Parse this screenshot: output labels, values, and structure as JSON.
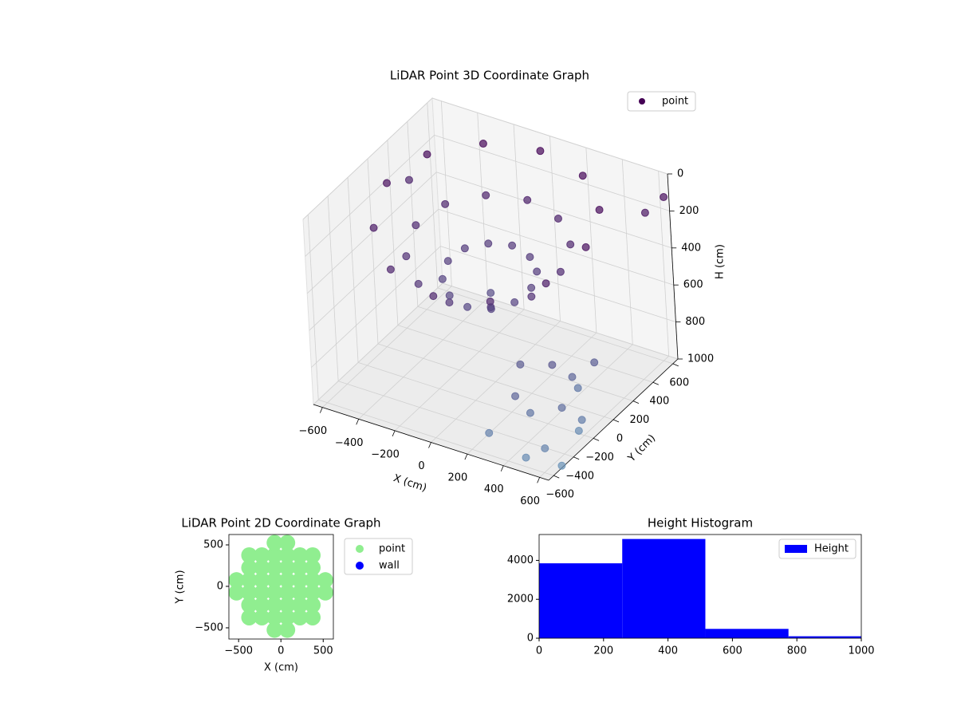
{
  "chart_data": [
    {
      "type": "scatter3d",
      "title": "LiDAR Point 3D Coordinate Graph",
      "xlabel": "X (cm)",
      "ylabel": "Y (cm)",
      "zlabel": "H (cm)",
      "xlim": [
        -650,
        650
      ],
      "ylim": [
        -650,
        650
      ],
      "zlim": [
        1000,
        0
      ],
      "xticks": [
        {
          "value": -600,
          "label": "−600"
        },
        {
          "value": -400,
          "label": "−400"
        },
        {
          "value": -200,
          "label": "−200"
        },
        0,
        200,
        400,
        600
      ],
      "yticks": [
        {
          "value": -600,
          "label": "−600"
        },
        {
          "value": -400,
          "label": "−400"
        },
        {
          "value": -200,
          "label": "−200"
        },
        0,
        200,
        400,
        600
      ],
      "zticks": [
        0,
        200,
        400,
        600,
        800,
        1000
      ],
      "cmap": [
        "#440154",
        "#6a93b8"
      ],
      "series": [
        {
          "name": "point",
          "color": "#440154",
          "x": [
            550,
            476,
            275,
            0,
            -275,
            -476,
            -550,
            -476,
            -275,
            0,
            275,
            476,
            400,
            346,
            200,
            0,
            -200,
            -346,
            -400,
            -346,
            -200,
            0,
            200,
            346,
            230,
            199,
            115,
            0,
            -115,
            -199,
            -230,
            -199,
            -115,
            0,
            115,
            199,
            0,
            500,
            550,
            600,
            450,
            620,
            580,
            500,
            650,
            400,
            600,
            350,
            640,
            520,
            300,
            600,
            650,
            -600
          ],
          "y": [
            0,
            275,
            476,
            550,
            476,
            275,
            0,
            -275,
            -476,
            -550,
            -476,
            -275,
            0,
            200,
            346,
            400,
            346,
            200,
            0,
            -200,
            -346,
            -400,
            -346,
            -200,
            0,
            115,
            199,
            230,
            199,
            115,
            0,
            -115,
            -199,
            -230,
            -199,
            -115,
            0,
            -300,
            -200,
            -400,
            -450,
            -100,
            -550,
            -600,
            -300,
            -500,
            -250,
            -350,
            -500,
            -100,
            -600,
            500,
            600,
            300
          ],
          "z": [
            100,
            60,
            40,
            30,
            40,
            60,
            100,
            180,
            240,
            260,
            240,
            180,
            280,
            250,
            230,
            220,
            230,
            250,
            280,
            330,
            360,
            370,
            360,
            330,
            420,
            400,
            390,
            380,
            390,
            400,
            420,
            450,
            470,
            480,
            470,
            450,
            520,
            600,
            700,
            750,
            800,
            650,
            900,
            950,
            850,
            700,
            950,
            620,
            1000,
            820,
            880,
            150,
            100,
            250
          ]
        }
      ]
    },
    {
      "type": "scatter",
      "title": "LiDAR Point 2D Coordinate Graph",
      "xlabel": "X (cm)",
      "ylabel": "Y (cm)",
      "xlim": [
        -615,
        620
      ],
      "ylim": [
        -635,
        625
      ],
      "xticks": [
        {
          "value": -500,
          "label": "−500"
        },
        0,
        500
      ],
      "yticks": [
        {
          "value": -500,
          "label": "−500"
        },
        0,
        500
      ],
      "series": [
        {
          "name": "point",
          "color": "#90ee90",
          "x": [
            -525,
            -525,
            -375,
            -375,
            -375,
            -375,
            -375,
            -375,
            -225,
            -225,
            -225,
            -225,
            -225,
            -225,
            -75,
            -75,
            -75,
            -75,
            -75,
            -75,
            -75,
            -75,
            75,
            75,
            75,
            75,
            75,
            75,
            75,
            75,
            225,
            225,
            225,
            225,
            225,
            225,
            375,
            375,
            375,
            375,
            375,
            375,
            525,
            525
          ],
          "y": [
            -75,
            75,
            -375,
            -225,
            -75,
            75,
            225,
            375,
            -375,
            -225,
            -75,
            75,
            225,
            375,
            -525,
            -375,
            -225,
            -75,
            75,
            225,
            375,
            525,
            -525,
            -375,
            -225,
            -75,
            75,
            225,
            375,
            525,
            -375,
            -225,
            -75,
            75,
            225,
            375,
            -375,
            -225,
            -75,
            75,
            225,
            375,
            -75,
            75
          ]
        },
        {
          "name": "wall",
          "color": "#0000ff",
          "x": [],
          "y": []
        }
      ]
    },
    {
      "type": "histogram",
      "title": "Height Histogram",
      "bins": [
        0,
        258,
        516,
        774,
        1032
      ],
      "series": [
        {
          "name": "Height",
          "color": "#0000ff",
          "values": [
            3850,
            5100,
            480,
            100
          ]
        }
      ],
      "xlim": [
        0,
        1000
      ],
      "ylim": [
        0,
        5330
      ],
      "xticks": [
        0,
        200,
        400,
        600,
        800,
        1000
      ],
      "yticks": [
        0,
        2000,
        4000
      ]
    }
  ]
}
